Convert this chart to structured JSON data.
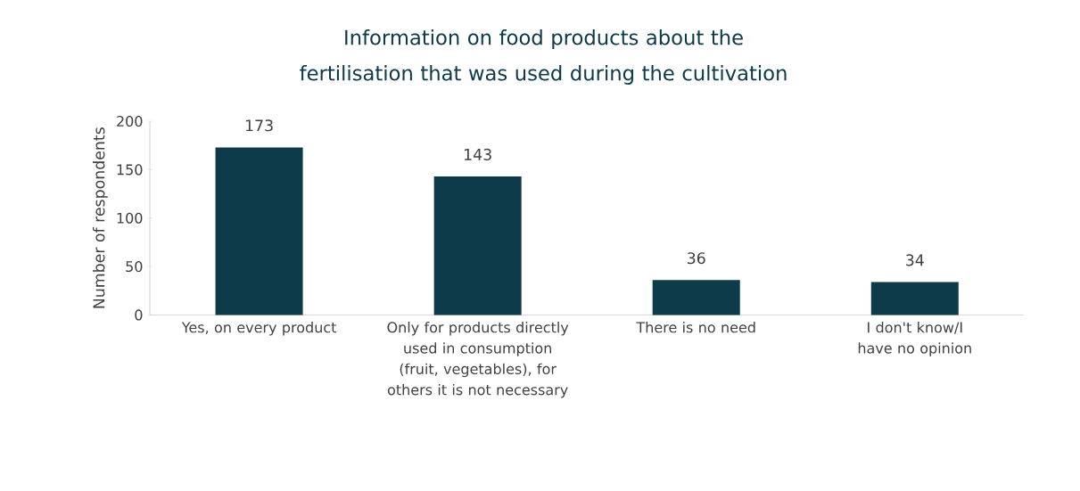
{
  "chart_data": {
    "type": "bar",
    "title": "Information on food products about the fertilisation that was used during the cultivation",
    "ylabel": "Number of respondents",
    "categories": [
      "Yes, on every product",
      "Only for products directly used in consumption (fruit, vegetables), for others it is not necessary",
      "There is no need",
      "I don't know/I have no opinion"
    ],
    "values": [
      173,
      143,
      36,
      34
    ],
    "color": "#0d3b4a",
    "ylim": [
      0,
      200
    ],
    "yticks": [
      0,
      50,
      100,
      150,
      200
    ],
    "grid": false,
    "data_labels": true
  }
}
